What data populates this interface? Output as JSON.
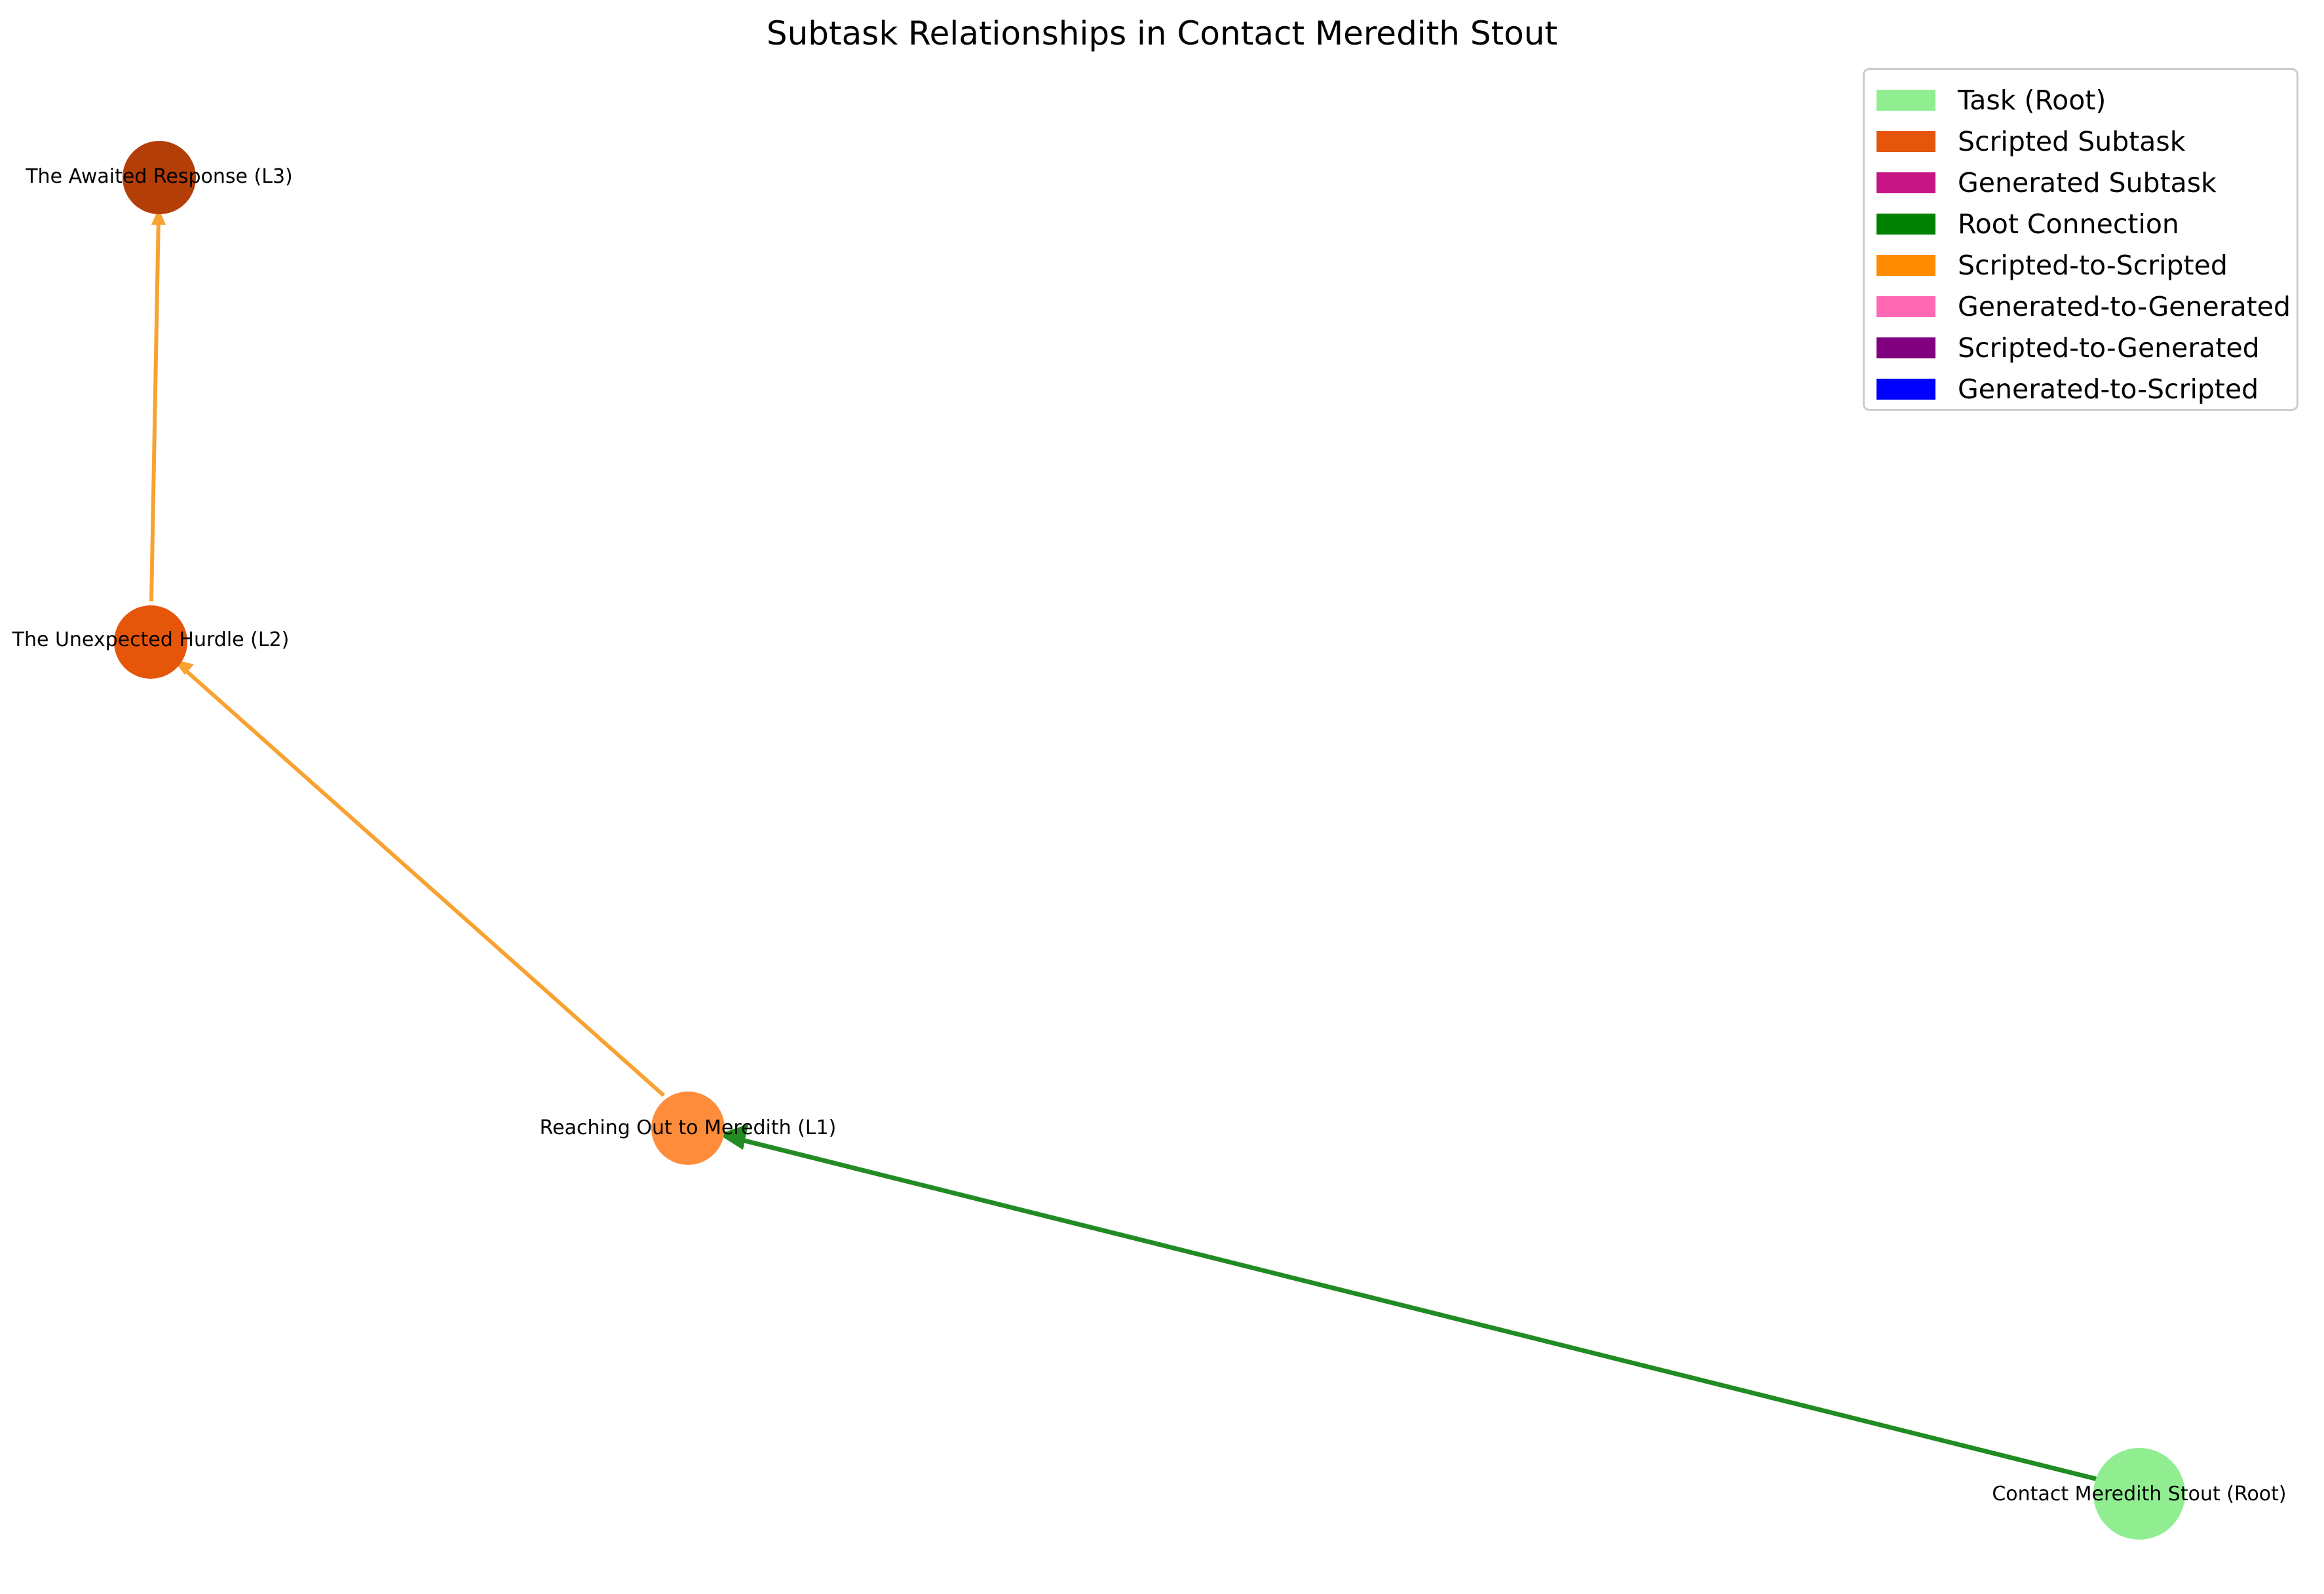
{
  "title": "Subtask Relationships in Contact Meredith Stout",
  "nodes": [
    {
      "id": "root",
      "label": "Contact Meredith Stout (Root)",
      "color": "#90EE90"
    },
    {
      "id": "l1",
      "label": "Reaching Out to Meredith (L1)",
      "color": "#FF8C3B"
    },
    {
      "id": "l2",
      "label": "The Unexpected Hurdle (L2)",
      "color": "#E5560B"
    },
    {
      "id": "l3",
      "label": "The Awaited Response (L3)",
      "color": "#B43E07"
    }
  ],
  "edges": [
    {
      "from": "root",
      "to": "l1",
      "kind": "Root Connection",
      "color": "#228B22"
    },
    {
      "from": "l1",
      "to": "l2",
      "kind": "Scripted-to-Scripted",
      "color": "#F8A232"
    },
    {
      "from": "l2",
      "to": "l3",
      "kind": "Scripted-to-Scripted",
      "color": "#F8A232"
    }
  ],
  "legend": [
    {
      "label": "Task (Root)",
      "color": "#90EE90"
    },
    {
      "label": "Scripted Subtask",
      "color": "#E5560B"
    },
    {
      "label": "Generated Subtask",
      "color": "#C71585"
    },
    {
      "label": "Root Connection",
      "color": "#008000"
    },
    {
      "label": "Scripted-to-Scripted",
      "color": "#FF8C00"
    },
    {
      "label": "Generated-to-Generated",
      "color": "#FF69B4"
    },
    {
      "label": "Scripted-to-Generated",
      "color": "#800080"
    },
    {
      "label": "Generated-to-Scripted",
      "color": "#0000FF"
    }
  ]
}
